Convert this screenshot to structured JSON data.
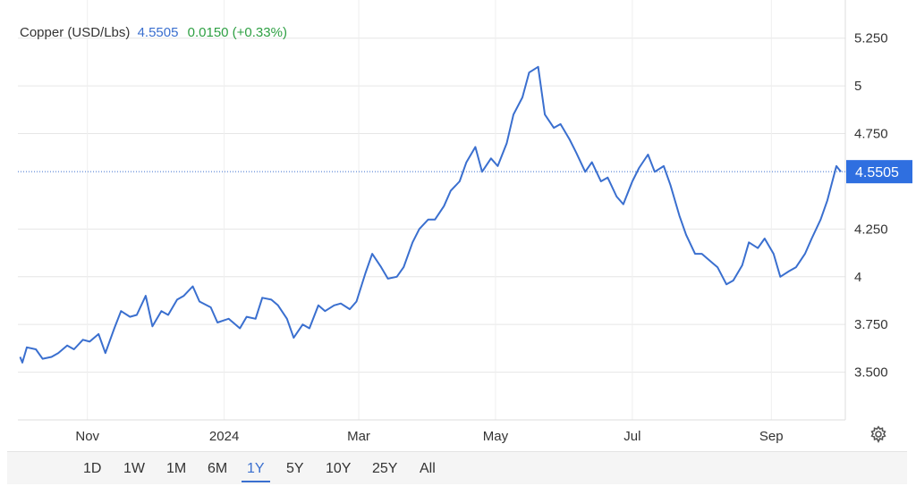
{
  "header": {
    "instrument": "Copper (USD/Lbs)",
    "price": "4.5505",
    "change": "0.0150 (+0.33%)"
  },
  "colors": {
    "line": "#3a6fcf",
    "grid": "#e6e6e6",
    "badge": "#2f6fe0",
    "change_positive": "#2ea043"
  },
  "icons": {
    "settings": "gear-icon"
  },
  "range_buttons": [
    {
      "label": "1D"
    },
    {
      "label": "1W"
    },
    {
      "label": "1M"
    },
    {
      "label": "6M"
    },
    {
      "label": "1Y",
      "active": true
    },
    {
      "label": "5Y"
    },
    {
      "label": "10Y"
    },
    {
      "label": "25Y"
    },
    {
      "label": "All"
    }
  ],
  "chart_data": {
    "type": "line",
    "ylim": [
      3.25,
      5.45
    ],
    "y_ticks": [
      "5.250",
      "5",
      "4.750",
      "4.250",
      "4",
      "3.750",
      "3.500"
    ],
    "y_tick_values": [
      5.25,
      5.0,
      4.75,
      4.25,
      4.0,
      3.75,
      3.5
    ],
    "x_tick_labels": [
      "Nov",
      "2024",
      "Mar",
      "May",
      "Jul",
      "Sep"
    ],
    "x_tick_dates": [
      "2023-11-01",
      "2024-01-01",
      "2024-03-01",
      "2024-05-01",
      "2024-07-01",
      "2024-09-01"
    ],
    "xlim": [
      "2023-10-01",
      "2024-10-04"
    ],
    "current_value": 4.5505,
    "current_label": "4.5505",
    "grid": true,
    "series": [
      {
        "dates": [
          "2023-10-02",
          "2023-10-03",
          "2023-10-05",
          "2023-10-09",
          "2023-10-12",
          "2023-10-16",
          "2023-10-19",
          "2023-10-23",
          "2023-10-26",
          "2023-10-30",
          "2023-11-02",
          "2023-11-06",
          "2023-11-09",
          "2023-11-13",
          "2023-11-16",
          "2023-11-20",
          "2023-11-23",
          "2023-11-27",
          "2023-11-30",
          "2023-12-04",
          "2023-12-07",
          "2023-12-11",
          "2023-12-14",
          "2023-12-18",
          "2023-12-21",
          "2023-12-26",
          "2023-12-29",
          "2024-01-03",
          "2024-01-08",
          "2024-01-11",
          "2024-01-15",
          "2024-01-18",
          "2024-01-22",
          "2024-01-25",
          "2024-01-29",
          "2024-02-01",
          "2024-02-05",
          "2024-02-08",
          "2024-02-12",
          "2024-02-15",
          "2024-02-19",
          "2024-02-22",
          "2024-02-26",
          "2024-02-29",
          "2024-03-04",
          "2024-03-07",
          "2024-03-11",
          "2024-03-14",
          "2024-03-18",
          "2024-03-21",
          "2024-03-25",
          "2024-03-28",
          "2024-04-01",
          "2024-04-04",
          "2024-04-08",
          "2024-04-11",
          "2024-04-15",
          "2024-04-18",
          "2024-04-22",
          "2024-04-25",
          "2024-04-29",
          "2024-05-02",
          "2024-05-06",
          "2024-05-09",
          "2024-05-13",
          "2024-05-16",
          "2024-05-20",
          "2024-05-23",
          "2024-05-27",
          "2024-05-30",
          "2024-06-03",
          "2024-06-06",
          "2024-06-10",
          "2024-06-13",
          "2024-06-17",
          "2024-06-20",
          "2024-06-24",
          "2024-06-27",
          "2024-07-01",
          "2024-07-04",
          "2024-07-08",
          "2024-07-11",
          "2024-07-15",
          "2024-07-18",
          "2024-07-22",
          "2024-07-25",
          "2024-07-29",
          "2024-08-01",
          "2024-08-05",
          "2024-08-08",
          "2024-08-12",
          "2024-08-15",
          "2024-08-19",
          "2024-08-22",
          "2024-08-26",
          "2024-08-29",
          "2024-09-02",
          "2024-09-05",
          "2024-09-09",
          "2024-09-12",
          "2024-09-16",
          "2024-09-19",
          "2024-09-23",
          "2024-09-26",
          "2024-09-30",
          "2024-10-02"
        ],
        "values": [
          3.58,
          3.55,
          3.63,
          3.62,
          3.57,
          3.58,
          3.6,
          3.64,
          3.62,
          3.67,
          3.66,
          3.7,
          3.6,
          3.73,
          3.82,
          3.79,
          3.8,
          3.9,
          3.74,
          3.82,
          3.8,
          3.88,
          3.9,
          3.95,
          3.87,
          3.84,
          3.76,
          3.78,
          3.73,
          3.79,
          3.78,
          3.89,
          3.88,
          3.85,
          3.78,
          3.68,
          3.75,
          3.73,
          3.85,
          3.82,
          3.85,
          3.86,
          3.83,
          3.87,
          4.02,
          4.12,
          4.05,
          3.99,
          4.0,
          4.05,
          4.18,
          4.25,
          4.3,
          4.3,
          4.37,
          4.45,
          4.5,
          4.6,
          4.68,
          4.55,
          4.62,
          4.58,
          4.7,
          4.85,
          4.94,
          5.07,
          5.1,
          4.85,
          4.78,
          4.8,
          4.72,
          4.65,
          4.55,
          4.6,
          4.5,
          4.52,
          4.42,
          4.38,
          4.5,
          4.57,
          4.64,
          4.55,
          4.58,
          4.48,
          4.32,
          4.22,
          4.12,
          4.12,
          4.08,
          4.05,
          3.96,
          3.98,
          4.06,
          4.18,
          4.15,
          4.2,
          4.12,
          4.0,
          4.03,
          4.05,
          4.12,
          4.2,
          4.3,
          4.4,
          4.58,
          4.55
        ]
      }
    ]
  }
}
